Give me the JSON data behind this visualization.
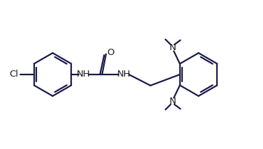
{
  "background": "#ffffff",
  "line_color": "#1a1a4a",
  "line_width": 1.6,
  "text_color": "#1a1a1a",
  "font_size": 9.5,
  "figsize": [
    3.77,
    2.14
  ],
  "dpi": 100,
  "xlim": [
    0,
    10
  ],
  "ylim": [
    0,
    5.68
  ]
}
